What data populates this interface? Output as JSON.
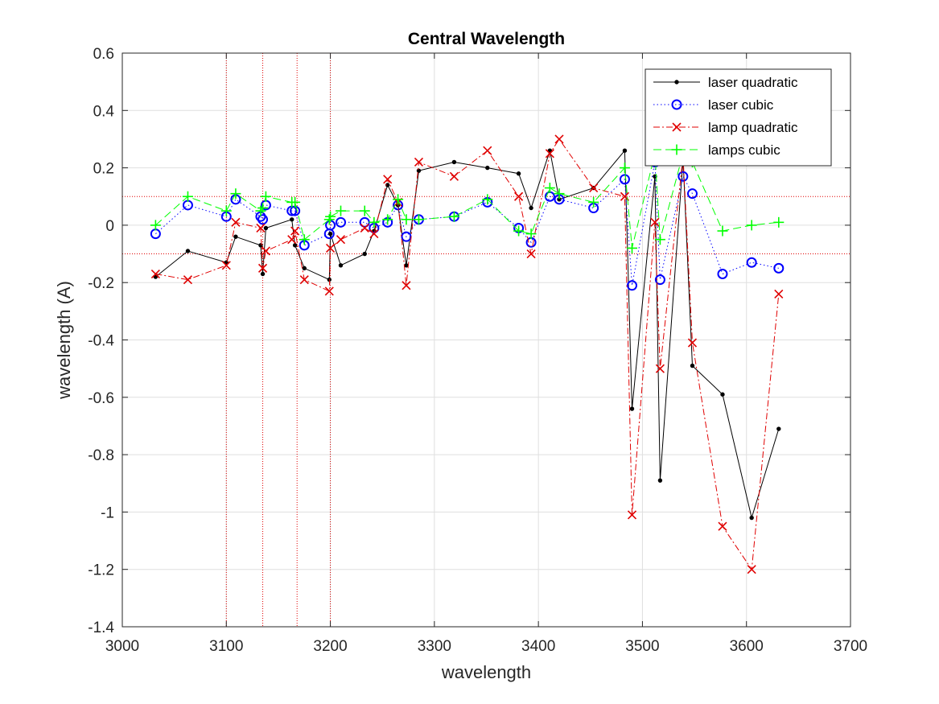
{
  "chart_data": {
    "type": "line",
    "title": "Central Wavelength",
    "xlabel": "wavelength",
    "ylabel": "wavelength (A)",
    "xlim": [
      3000,
      3700
    ],
    "ylim": [
      -1.4,
      0.6
    ],
    "xticks": [
      "3000",
      "3100",
      "3200",
      "3300",
      "3400",
      "3500",
      "3600",
      "3700"
    ],
    "yticks": [
      "-1.4",
      "-1.2",
      "-1",
      "-0.8",
      "-0.6",
      "-0.4",
      "-0.2",
      "0",
      "0.2",
      "0.4",
      "0.6"
    ],
    "grid": true,
    "legend_position": "top-right",
    "reference_lines": {
      "horizontal": [
        0.1,
        -0.1
      ],
      "vertical": [
        3100,
        3135,
        3168,
        3200
      ],
      "color": "#e00000"
    },
    "series": [
      {
        "name": "laser quadratic",
        "color": "#000000",
        "style": "solid",
        "marker": "dot",
        "x": [
          3032,
          3063,
          3100,
          3109,
          3133,
          3135,
          3138,
          3163,
          3166,
          3175,
          3199,
          3200,
          3210,
          3233,
          3242,
          3255,
          3265,
          3273,
          3285,
          3319,
          3351,
          3381,
          3393,
          3411,
          3420,
          3453,
          3483,
          3490,
          3512,
          3517,
          3539,
          3548,
          3577,
          3605,
          3631
        ],
        "y": [
          -0.18,
          -0.09,
          -0.13,
          -0.04,
          -0.07,
          -0.17,
          -0.01,
          0.02,
          -0.07,
          -0.15,
          -0.19,
          -0.03,
          -0.14,
          -0.1,
          -0.02,
          0.14,
          0.07,
          -0.14,
          0.19,
          0.22,
          0.2,
          0.18,
          0.06,
          0.26,
          0.09,
          0.13,
          0.26,
          -0.64,
          0.17,
          -0.89,
          0.23,
          -0.49,
          -0.59,
          -1.02,
          -0.71
        ]
      },
      {
        "name": "laser cubic",
        "color": "#0000ff",
        "style": "dotted",
        "marker": "circle",
        "x": [
          3032,
          3063,
          3100,
          3109,
          3133,
          3135,
          3138,
          3163,
          3166,
          3175,
          3199,
          3200,
          3210,
          3233,
          3242,
          3255,
          3265,
          3273,
          3285,
          3319,
          3351,
          3381,
          3393,
          3411,
          3420,
          3453,
          3483,
          3490,
          3512,
          3517,
          3539,
          3548,
          3577,
          3605,
          3631
        ],
        "y": [
          -0.03,
          0.07,
          0.03,
          0.09,
          0.03,
          0.02,
          0.07,
          0.05,
          0.05,
          -0.07,
          -0.03,
          0.0,
          0.01,
          0.01,
          -0.01,
          0.01,
          0.07,
          -0.04,
          0.02,
          0.03,
          0.08,
          -0.01,
          -0.06,
          0.1,
          0.09,
          0.06,
          0.16,
          -0.21,
          0.22,
          -0.19,
          0.17,
          0.11,
          -0.17,
          -0.13,
          -0.15
        ]
      },
      {
        "name": "lamp quadratic",
        "color": "#e00000",
        "style": "dashdot",
        "marker": "x",
        "x": [
          3032,
          3063,
          3100,
          3109,
          3133,
          3135,
          3138,
          3163,
          3166,
          3175,
          3199,
          3200,
          3210,
          3233,
          3242,
          3255,
          3265,
          3273,
          3285,
          3319,
          3351,
          3381,
          3393,
          3411,
          3420,
          3453,
          3483,
          3490,
          3512,
          3517,
          3539,
          3548,
          3577,
          3605,
          3631
        ],
        "y": [
          -0.17,
          -0.19,
          -0.14,
          0.01,
          -0.01,
          -0.15,
          -0.09,
          -0.05,
          -0.02,
          -0.19,
          -0.23,
          -0.08,
          -0.05,
          -0.01,
          -0.03,
          0.16,
          0.08,
          -0.21,
          0.22,
          0.17,
          0.26,
          0.1,
          -0.1,
          0.25,
          0.3,
          0.13,
          0.1,
          -1.01,
          0.01,
          -0.5,
          0.24,
          -0.41,
          -1.05,
          -1.2,
          -0.24
        ]
      },
      {
        "name": "lamps cubic",
        "color": "#00ff00",
        "style": "dashed",
        "marker": "plus",
        "x": [
          3032,
          3063,
          3100,
          3109,
          3133,
          3135,
          3138,
          3163,
          3166,
          3175,
          3199,
          3200,
          3210,
          3233,
          3242,
          3255,
          3265,
          3273,
          3285,
          3319,
          3351,
          3381,
          3393,
          3411,
          3420,
          3453,
          3483,
          3490,
          3512,
          3517,
          3539,
          3548,
          3577,
          3605,
          3631
        ],
        "y": [
          0.0,
          0.1,
          0.05,
          0.11,
          0.05,
          0.06,
          0.1,
          0.08,
          0.08,
          -0.05,
          0.02,
          0.03,
          0.05,
          0.05,
          0.01,
          0.02,
          0.09,
          0.02,
          0.02,
          0.03,
          0.09,
          -0.02,
          -0.03,
          0.13,
          0.11,
          0.08,
          0.2,
          -0.08,
          0.25,
          -0.05,
          0.25,
          0.22,
          -0.02,
          0.0,
          0.01
        ]
      }
    ]
  }
}
